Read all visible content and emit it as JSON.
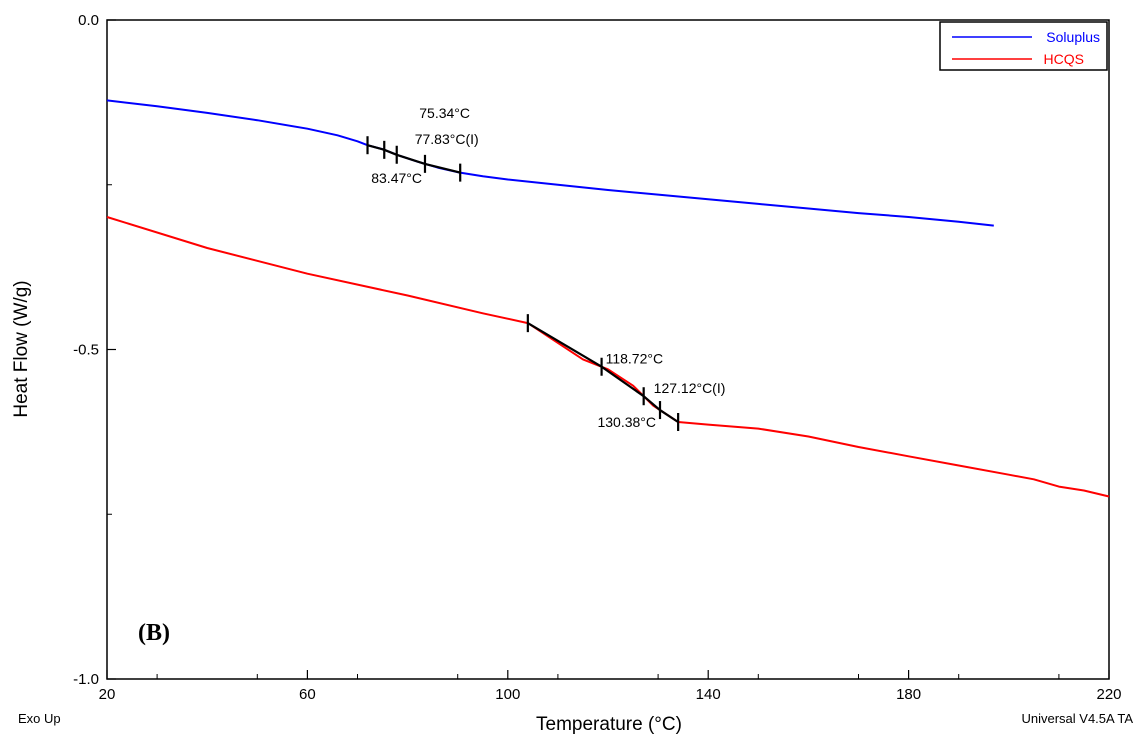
{
  "chart_data": {
    "type": "line",
    "panel_label": "(B)",
    "xlabel": "Temperature (°C)",
    "ylabel": "Heat Flow (W/g)",
    "xlim": [
      20,
      220
    ],
    "ylim": [
      -1.0,
      0.0
    ],
    "x_ticks": [
      "20",
      "60",
      "100",
      "140",
      "180",
      "220"
    ],
    "y_ticks": [
      "0.0",
      "-0.5",
      "-1.0"
    ],
    "footer_left": "Exo Up",
    "footer_right": "Universal V4.5A TA",
    "legend_position": "top-right",
    "grid": false,
    "series": [
      {
        "name": "Soluplus",
        "color": "#0000ff",
        "x": [
          20,
          30,
          40,
          50,
          60,
          66,
          70,
          72,
          75,
          78,
          82,
          86,
          90,
          95,
          100,
          110,
          120,
          130,
          140,
          150,
          160,
          170,
          180,
          190,
          197
        ],
        "y": [
          -0.122,
          -0.131,
          -0.141,
          -0.152,
          -0.165,
          -0.175,
          -0.184,
          -0.19,
          -0.196,
          -0.205,
          -0.215,
          -0.224,
          -0.231,
          -0.237,
          -0.242,
          -0.25,
          -0.258,
          -0.265,
          -0.272,
          -0.279,
          -0.286,
          -0.293,
          -0.299,
          -0.306,
          -0.312
        ]
      },
      {
        "name": "HCQS",
        "color": "#ff0000",
        "x": [
          20,
          40,
          60,
          80,
          95,
          104,
          110,
          115,
          120,
          125,
          129,
          134,
          140,
          150,
          160,
          170,
          180,
          190,
          200,
          205,
          210,
          215,
          220
        ],
        "y": [
          -0.299,
          -0.346,
          -0.385,
          -0.418,
          -0.445,
          -0.46,
          -0.49,
          -0.515,
          -0.53,
          -0.555,
          -0.585,
          -0.61,
          -0.614,
          -0.62,
          -0.632,
          -0.648,
          -0.662,
          -0.676,
          -0.69,
          -0.697,
          -0.708,
          -0.714,
          -0.723
        ]
      }
    ],
    "annotations": [
      {
        "text": "75.34°C",
        "series": "Soluplus",
        "x": 75.34
      },
      {
        "text": "77.83°C(I)",
        "series": "Soluplus",
        "x": 77.83
      },
      {
        "text": "83.47°C",
        "series": "Soluplus",
        "x": 83.47
      },
      {
        "text": "118.72°C",
        "series": "HCQS",
        "x": 118.72
      },
      {
        "text": "127.12°C(I)",
        "series": "HCQS",
        "x": 127.12
      },
      {
        "text": "130.38°C",
        "series": "HCQS",
        "x": 130.38
      }
    ],
    "glass_transition_markers": [
      {
        "series": "Soluplus",
        "limits": [
          72,
          90.5
        ],
        "ticks": [
          72,
          75.34,
          77.83,
          83.47,
          90.5
        ]
      },
      {
        "series": "HCQS",
        "limits": [
          104,
          134
        ],
        "ticks": [
          104,
          118.72,
          127.12,
          130.38,
          134
        ]
      }
    ]
  }
}
